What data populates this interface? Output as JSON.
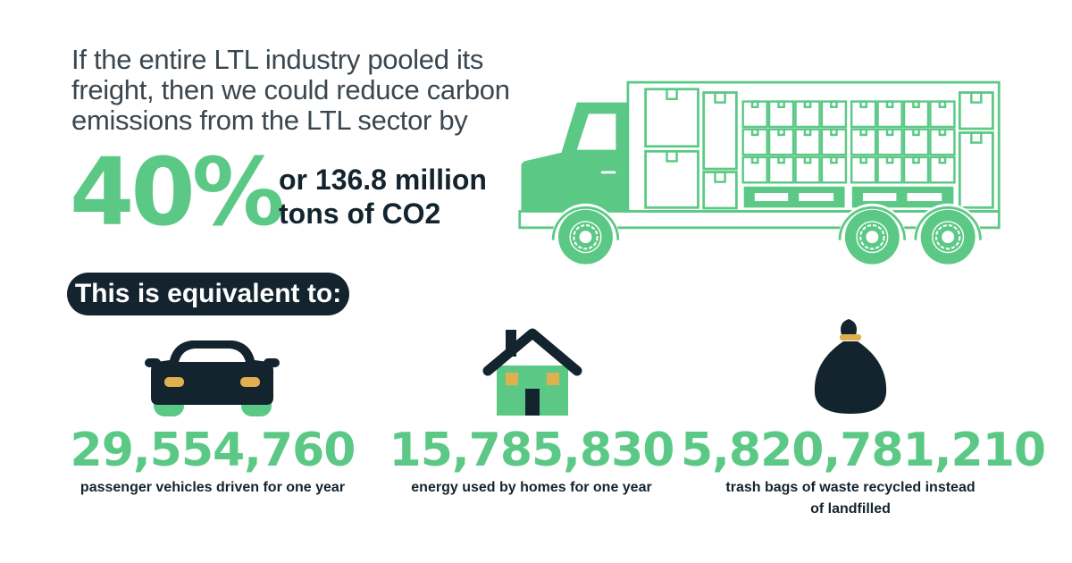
{
  "headline": {
    "lines": [
      "If the entire LTL industry pooled its",
      "freight, then we could reduce carbon",
      "emissions from the LTL sector by"
    ],
    "percent": "40%",
    "tons_line1": "or 136.8 million",
    "tons_line2": "tons of CO2"
  },
  "equivalent_label": "This is equivalent to:",
  "stats": [
    {
      "icon": "car-icon",
      "value": "29,554,760",
      "caption": [
        "passenger vehicles driven for one year"
      ]
    },
    {
      "icon": "house-icon",
      "value": "15,785,830",
      "caption": [
        "energy used by homes for one year"
      ]
    },
    {
      "icon": "trash-bag-icon",
      "value": "5,820,781,210",
      "caption": [
        "trash bags of waste recycled instead",
        "of landfilled"
      ]
    }
  ],
  "colors": {
    "accent": "#5bc985",
    "dark": "#13242e",
    "gold": "#e0b04e"
  },
  "illustration": "truck-icon"
}
